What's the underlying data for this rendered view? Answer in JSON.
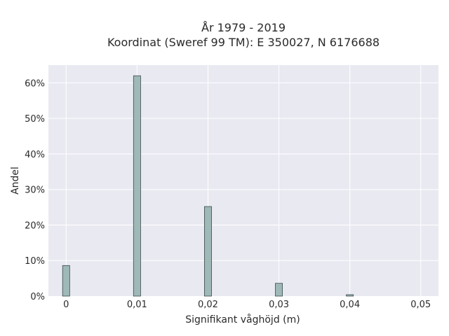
{
  "chart_data": {
    "type": "bar",
    "title_line1": "År 1979 - 2019",
    "title_line2": "Koordinat (Sweref 99 TM): E 350027, N 6176688",
    "xlabel": "Signifikant våghöjd (m)",
    "ylabel": "Andel",
    "x": [
      0,
      0.01,
      0.02,
      0.03,
      0.04
    ],
    "values": [
      0.086,
      0.62,
      0.252,
      0.036,
      0.004
    ],
    "bar_width": 0.001,
    "xlim": [
      -0.0025,
      0.0525
    ],
    "ylim": [
      0,
      0.65
    ],
    "x_ticks": [
      {
        "value": 0,
        "label": "0"
      },
      {
        "value": 0.01,
        "label": "0,01"
      },
      {
        "value": 0.02,
        "label": "0,02"
      },
      {
        "value": 0.03,
        "label": "0,03"
      },
      {
        "value": 0.04,
        "label": "0,04"
      },
      {
        "value": 0.05,
        "label": "0,05"
      }
    ],
    "y_ticks": [
      {
        "value": 0,
        "label": "0%"
      },
      {
        "value": 0.1,
        "label": "10%"
      },
      {
        "value": 0.2,
        "label": "20%"
      },
      {
        "value": 0.3,
        "label": "30%"
      },
      {
        "value": 0.4,
        "label": "40%"
      },
      {
        "value": 0.5,
        "label": "50%"
      },
      {
        "value": 0.6,
        "label": "60%"
      }
    ],
    "grid": true,
    "colors": {
      "background": "#e9e9f2",
      "grid": "#ffffff",
      "bar_fill": "#9fb8b8",
      "bar_stroke": "#3a4a4a"
    }
  }
}
